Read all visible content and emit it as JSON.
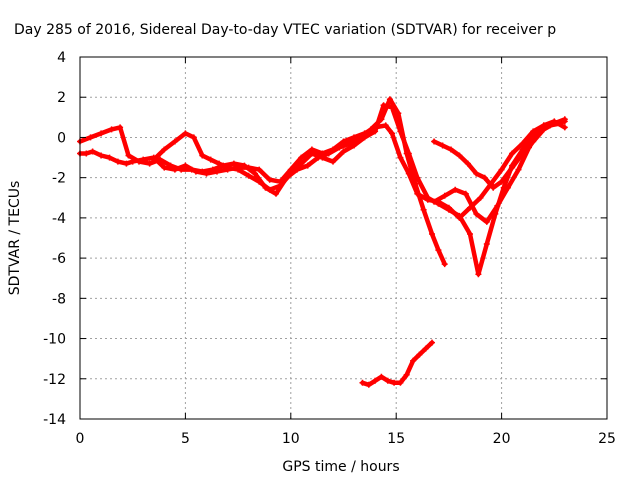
{
  "chart_data": {
    "type": "scatter",
    "title": "Day 285 of 2016, Sidereal Day-to-day VTEC variation (SDTVAR) for receiver p",
    "xlabel": "GPS time / hours",
    "ylabel": "SDTVAR / TECUs",
    "xlim": [
      0,
      25
    ],
    "ylim": [
      -14,
      4
    ],
    "xticks": [
      0,
      5,
      10,
      15,
      20,
      25
    ],
    "yticks": [
      -14,
      -12,
      -10,
      -8,
      -6,
      -4,
      -2,
      0,
      2,
      4
    ],
    "grid": true,
    "marker": "plus",
    "color": "#ff0000",
    "series": [
      {
        "x": [
          0.0,
          0.3,
          0.6,
          1.0,
          1.4,
          1.8,
          2.2,
          2.5,
          3.0,
          3.5,
          4.0,
          4.5,
          5.0,
          5.5,
          6.0,
          6.5,
          7.0,
          7.5,
          8.0,
          8.5,
          9.0,
          9.5,
          10.0,
          10.5,
          11.0,
          11.5,
          12.0,
          12.5,
          13.0,
          13.5,
          14.0,
          14.5,
          14.8,
          15.2,
          15.6,
          16.0,
          16.5,
          17.0,
          17.5,
          18.0,
          18.5,
          19.0,
          19.5,
          20.0,
          20.5,
          21.0,
          21.5,
          22.0,
          22.5,
          23.0
        ],
        "y": [
          -0.8,
          -0.8,
          -0.7,
          -0.9,
          -1.0,
          -1.2,
          -1.3,
          -1.2,
          -1.1,
          -1.0,
          -1.5,
          -1.6,
          -1.4,
          -1.7,
          -1.8,
          -1.7,
          -1.6,
          -1.5,
          -1.5,
          -1.6,
          -2.1,
          -2.2,
          -1.6,
          -1.0,
          -0.6,
          -0.8,
          -0.6,
          -0.2,
          0.0,
          0.2,
          0.5,
          0.6,
          0.2,
          -1.0,
          -1.8,
          -2.8,
          -3.1,
          -3.2,
          -3.5,
          -4.0,
          -3.5,
          -3.0,
          -2.3,
          -1.6,
          -0.8,
          -0.3,
          0.3,
          0.6,
          0.7,
          0.8
        ]
      },
      {
        "x": [
          0.0,
          0.5,
          1.0,
          1.5,
          1.9,
          2.3,
          2.8,
          3.3,
          3.8,
          4.3,
          4.8,
          5.3,
          5.8,
          6.3,
          6.8,
          7.3,
          7.8,
          8.3,
          8.8,
          9.3,
          9.8,
          10.3,
          10.8,
          11.3,
          11.8,
          12.3,
          12.8,
          13.3,
          13.8,
          14.3,
          14.7,
          15.1,
          15.5,
          15.9,
          16.3,
          16.7,
          17.0,
          17.3
        ],
        "y": [
          -0.2,
          0.0,
          0.2,
          0.4,
          0.5,
          -0.9,
          -1.2,
          -1.3,
          -1.1,
          -1.4,
          -1.6,
          -1.6,
          -1.7,
          -1.6,
          -1.4,
          -1.3,
          -1.4,
          -1.8,
          -2.5,
          -2.8,
          -2.0,
          -1.6,
          -1.4,
          -1.0,
          -0.8,
          -0.5,
          -0.3,
          0.0,
          0.4,
          0.9,
          1.9,
          1.2,
          -0.8,
          -2.3,
          -3.6,
          -4.8,
          -5.6,
          -6.3
        ]
      },
      {
        "x": [
          3.5,
          4.0,
          4.5,
          5.0,
          5.4,
          5.8,
          6.2,
          6.6,
          7.0,
          7.5,
          8.0,
          8.5,
          9.0,
          9.5,
          10.0,
          10.5,
          11.0,
          11.5,
          12.0,
          12.5,
          13.0,
          13.5,
          14.0,
          14.4,
          14.8,
          15.2,
          15.6,
          16.0,
          16.5,
          17.0,
          17.5,
          18.0,
          18.5,
          18.9,
          19.3,
          19.7,
          20.1,
          20.5,
          21.0,
          21.5,
          22.0,
          22.5,
          23.0
        ],
        "y": [
          -1.1,
          -0.6,
          -0.2,
          0.2,
          0.0,
          -0.9,
          -1.1,
          -1.3,
          -1.5,
          -1.6,
          -1.9,
          -2.2,
          -2.6,
          -2.4,
          -1.8,
          -1.3,
          -0.8,
          -1.0,
          -1.2,
          -0.7,
          -0.4,
          0.0,
          0.3,
          1.6,
          1.5,
          0.3,
          -0.8,
          -2.0,
          -3.0,
          -3.3,
          -3.6,
          -3.9,
          -4.8,
          -6.8,
          -5.3,
          -3.8,
          -2.5,
          -1.4,
          -0.6,
          0.2,
          0.6,
          0.8,
          0.5
        ]
      },
      {
        "x": [
          16.8,
          17.2,
          17.6,
          18.0,
          18.4,
          18.8,
          19.2,
          19.6,
          20.0,
          20.5,
          21.0,
          21.5,
          22.0,
          22.5,
          23.0
        ],
        "y": [
          -0.2,
          -0.4,
          -0.6,
          -0.9,
          -1.3,
          -1.8,
          -2.0,
          -2.5,
          -2.2,
          -1.5,
          -0.8,
          -0.2,
          0.4,
          0.7,
          0.9
        ]
      },
      {
        "x": [
          16.8,
          17.3,
          17.8,
          18.3,
          18.8,
          19.3,
          19.8,
          20.3,
          20.8,
          21.3,
          21.8,
          22.3,
          22.8
        ],
        "y": [
          -3.2,
          -2.9,
          -2.6,
          -2.8,
          -3.8,
          -4.2,
          -3.4,
          -2.5,
          -1.6,
          -0.5,
          0.3,
          0.6,
          0.7
        ]
      },
      {
        "x": [
          13.4,
          13.7,
          14.0,
          14.3,
          14.6,
          14.9,
          15.2,
          15.5,
          15.8,
          16.1,
          16.4,
          16.7
        ],
        "y": [
          -12.2,
          -12.3,
          -12.1,
          -11.9,
          -12.1,
          -12.2,
          -12.2,
          -11.8,
          -11.1,
          -10.8,
          -10.5,
          -10.2
        ]
      }
    ]
  }
}
